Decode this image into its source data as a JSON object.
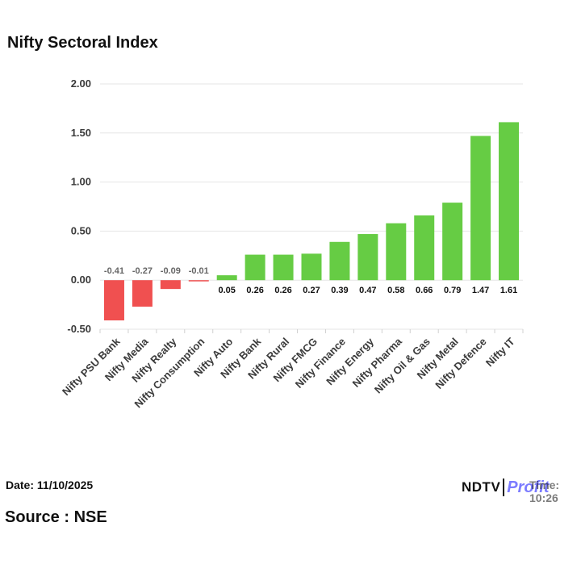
{
  "title": "Nifty Sectoral Index",
  "date_text": "Date: 11/10/2025",
  "time_text": "Time: 10:26",
  "source_text": "Source : NSE",
  "logo": {
    "brand": "NDTV",
    "product": "Profit"
  },
  "colors": {
    "positive": "#66cc44",
    "negative": "#f05050",
    "grid": "#e6e6e6"
  },
  "chart_data": {
    "type": "bar",
    "title": "Nifty Sectoral Index",
    "xlabel": "",
    "ylabel": "",
    "ylim": [
      -0.5,
      2.0
    ],
    "yticks": [
      "2.00",
      "1.50",
      "1.00",
      "0.50",
      "0.00",
      "-0.50"
    ],
    "ytick_values": [
      2.0,
      1.5,
      1.0,
      0.5,
      0.0,
      -0.5
    ],
    "grid": true,
    "categories": [
      "Nifty PSU Bank",
      "Nifty Media",
      "Nifty Realty",
      "Nifty Consumption",
      "Nifty Auto",
      "Nifty Bank",
      "Nifty Rural",
      "Nifty FMCG",
      "Nifty Finance",
      "Nifty Energy",
      "Nifty Pharma",
      "Nifty Oil & Gas",
      "Nifty Metal",
      "Nifty Defence",
      "Nifty IT"
    ],
    "values": [
      -0.41,
      -0.27,
      -0.09,
      -0.01,
      0.05,
      0.26,
      0.26,
      0.27,
      0.39,
      0.47,
      0.58,
      0.66,
      0.79,
      1.47,
      1.61
    ],
    "labels": [
      "-0.41",
      "-0.27",
      "-0.09",
      "-0.01",
      "0.05",
      "0.26",
      "0.26",
      "0.27",
      "0.39",
      "0.47",
      "0.58",
      "0.66",
      "0.79",
      "1.47",
      "1.61"
    ]
  }
}
